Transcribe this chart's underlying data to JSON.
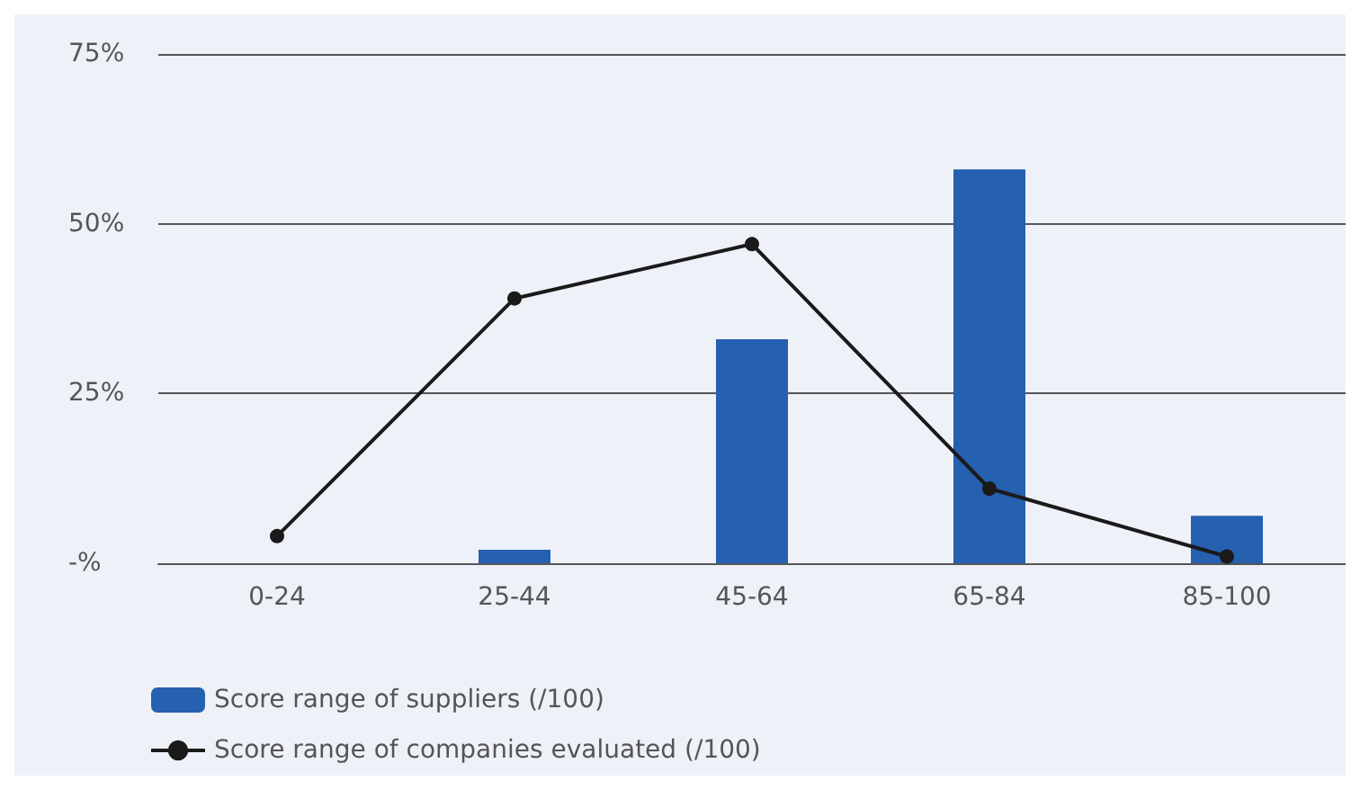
{
  "chart_data": {
    "type": "bar",
    "categories": [
      "0-24",
      "25-44",
      "45-64",
      "65-84",
      "85-100"
    ],
    "series": [
      {
        "name": "Score range of suppliers (/100)",
        "color": "#2660b0",
        "values": [
          null,
          2,
          33,
          58,
          7
        ]
      },
      {
        "name": "Score range of companies evaluated (/100)",
        "type": "line",
        "color": "#1a1a1a",
        "values": [
          4,
          39,
          47,
          11,
          1
        ]
      }
    ],
    "ylim": [
      0,
      75
    ],
    "yticks": [
      {
        "value": 0,
        "label": "-%"
      },
      {
        "value": 25,
        "label": "25%"
      },
      {
        "value": 50,
        "label": "50%"
      },
      {
        "value": 75,
        "label": "75%"
      }
    ],
    "grid": "y",
    "legend": "bottom left",
    "marker": "circle",
    "line_style": "solid"
  }
}
